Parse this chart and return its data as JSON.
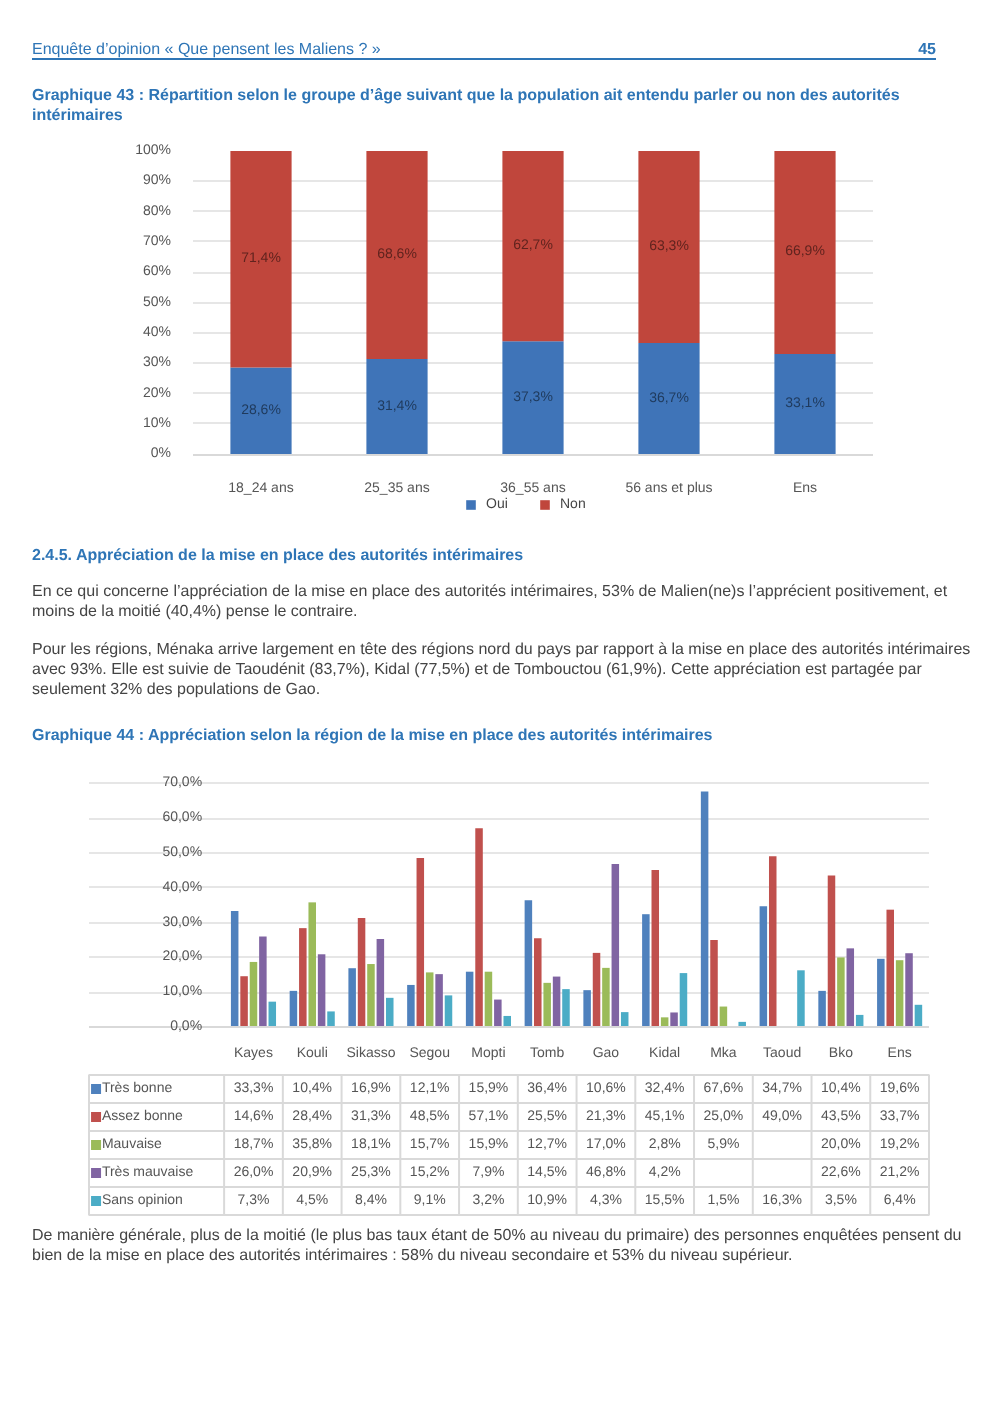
{
  "chart_data": [
    {
      "type": "bar",
      "title": "Graphique 43 : Répartition selon le groupe d’âge suivant que la population ait entendu parler ou non des autorités intérimaires",
      "annotations": [
        "Enquête d’opinion « Que pensent les Maliens ? »",
        "45"
      ],
      "categories": [
        "18_24 ans",
        "25_35 ans",
        "36_55 ans",
        "56 ans et plus",
        "Ens"
      ],
      "stacked": true,
      "series": [
        {
          "name": "Oui",
          "color": "#3f74b8",
          "values": [
            28.6,
            31.4,
            37.3,
            36.7,
            33.1
          ],
          "value_labels": [
            "28,6%",
            "31,4%",
            "37,3%",
            "36,7%",
            "33,1%"
          ]
        },
        {
          "name": "Non",
          "color": "#c0463c",
          "values": [
            71.4,
            68.6,
            62.7,
            63.3,
            66.9
          ],
          "value_labels": [
            "71,4%",
            "68,6%",
            "62,7%",
            "63,3%",
            "66,9%"
          ]
        }
      ],
      "ylim": [
        0,
        100
      ],
      "yticks": [
        {
          "value": 0,
          "label": "0%"
        },
        {
          "value": 10,
          "label": "10%"
        },
        {
          "value": 20,
          "label": "20%"
        },
        {
          "value": 30,
          "label": "30%"
        },
        {
          "value": 40,
          "label": "40%"
        },
        {
          "value": 50,
          "label": "50%"
        },
        {
          "value": 60,
          "label": "60%"
        },
        {
          "value": 70,
          "label": "70%"
        },
        {
          "value": 80,
          "label": "80%"
        },
        {
          "value": 90,
          "label": "90%"
        },
        {
          "value": 100,
          "label": "100%"
        }
      ],
      "grid": "y",
      "legend": "bottom"
    },
    {
      "type": "bar",
      "title": "Graphique 44 : Appréciation selon la région de la mise en place des autorités intérimaires",
      "annotations": [
        "2.4.5. Appréciation de la mise en place des autorités intérimaires",
        "En ce qui concerne l’appréciation de la mise en place des autorités intérimaires, 53% de Malien(ne)s l’apprécient positivement, et moins de la moitié (40,4%) pense le contraire.",
        "Pour les régions, Ménaka arrive largement en tête des régions nord du pays par rapport à la mise en place des autorités intérimaires avec 93%. Elle est suivie de Taoudénit (83,7%), Kidal (77,5%) et de Tombouctou (61,9%). Cette appréciation est partagée par seulement 32% des populations de Gao.",
        "De manière générale, plus de la moitié (le plus  bas taux étant de 50% au niveau du primaire) des personnes enquêtées pensent du bien de la mise en place des autorités intérimaires : 58% du niveau secondaire et 53% du niveau supérieur."
      ],
      "categories": [
        "Kayes",
        "Kouli",
        "Sikasso",
        "Segou",
        "Mopti",
        "Tomb",
        "Gao",
        "Kidal",
        "Mka",
        "Taoud",
        "Bko",
        "Ens"
      ],
      "series": [
        {
          "name": "Très bonne",
          "color": "#4f81bd",
          "values": [
            33.3,
            10.4,
            16.9,
            12.1,
            15.9,
            36.4,
            10.6,
            32.4,
            67.6,
            34.7,
            10.4,
            19.6
          ],
          "value_labels": [
            "33,3%",
            "10,4%",
            "16,9%",
            "12,1%",
            "15,9%",
            "36,4%",
            "10,6%",
            "32,4%",
            "67,6%",
            "34,7%",
            "10,4%",
            "19,6%"
          ]
        },
        {
          "name": "Assez bonne",
          "color": "#c0504d",
          "values": [
            14.6,
            28.4,
            31.3,
            48.5,
            57.1,
            25.5,
            21.3,
            45.1,
            25.0,
            49.0,
            43.5,
            33.7
          ],
          "value_labels": [
            "14,6%",
            "28,4%",
            "31,3%",
            "48,5%",
            "57,1%",
            "25,5%",
            "21,3%",
            "45,1%",
            "25,0%",
            "49,0%",
            "43,5%",
            "33,7%"
          ]
        },
        {
          "name": "Mauvaise",
          "color": "#9bbb59",
          "values": [
            18.7,
            35.8,
            18.1,
            15.7,
            15.9,
            12.7,
            17.0,
            2.8,
            5.9,
            null,
            20.0,
            19.2
          ],
          "value_labels": [
            "18,7%",
            "35,8%",
            "18,1%",
            "15,7%",
            "15,9%",
            "12,7%",
            "17,0%",
            "2,8%",
            "5,9%",
            null,
            "20,0%",
            "19,2%"
          ]
        },
        {
          "name": "Très mauvaise",
          "color": "#8064a2",
          "values": [
            26.0,
            20.9,
            25.3,
            15.2,
            7.9,
            14.5,
            46.8,
            4.2,
            null,
            null,
            22.6,
            21.2
          ],
          "value_labels": [
            "26,0%",
            "20,9%",
            "25,3%",
            "15,2%",
            "7,9%",
            "14,5%",
            "46,8%",
            "4,2%",
            null,
            null,
            "22,6%",
            "21,2%"
          ]
        },
        {
          "name": "Sans opinion",
          "color": "#4bacc6",
          "values": [
            7.3,
            4.5,
            8.4,
            9.1,
            3.2,
            10.9,
            4.3,
            15.5,
            1.5,
            16.3,
            3.5,
            6.4
          ],
          "value_labels": [
            "7,3%",
            "4,5%",
            "8,4%",
            "9,1%",
            "3,2%",
            "10,9%",
            "4,3%",
            "15,5%",
            "1,5%",
            "16,3%",
            "3,5%",
            "6,4%"
          ]
        }
      ],
      "ylim": [
        0,
        70
      ],
      "yticks": [
        {
          "value": 0,
          "label": "0,0%"
        },
        {
          "value": 10,
          "label": "10,0%"
        },
        {
          "value": 20,
          "label": "20,0%"
        },
        {
          "value": 30,
          "label": "30,0%"
        },
        {
          "value": 40,
          "label": "40,0%"
        },
        {
          "value": 50,
          "label": "50,0%"
        },
        {
          "value": 60,
          "label": "60,0%"
        },
        {
          "value": 70,
          "label": "70,0%"
        }
      ],
      "grid": "y",
      "legend": "bottom"
    }
  ]
}
